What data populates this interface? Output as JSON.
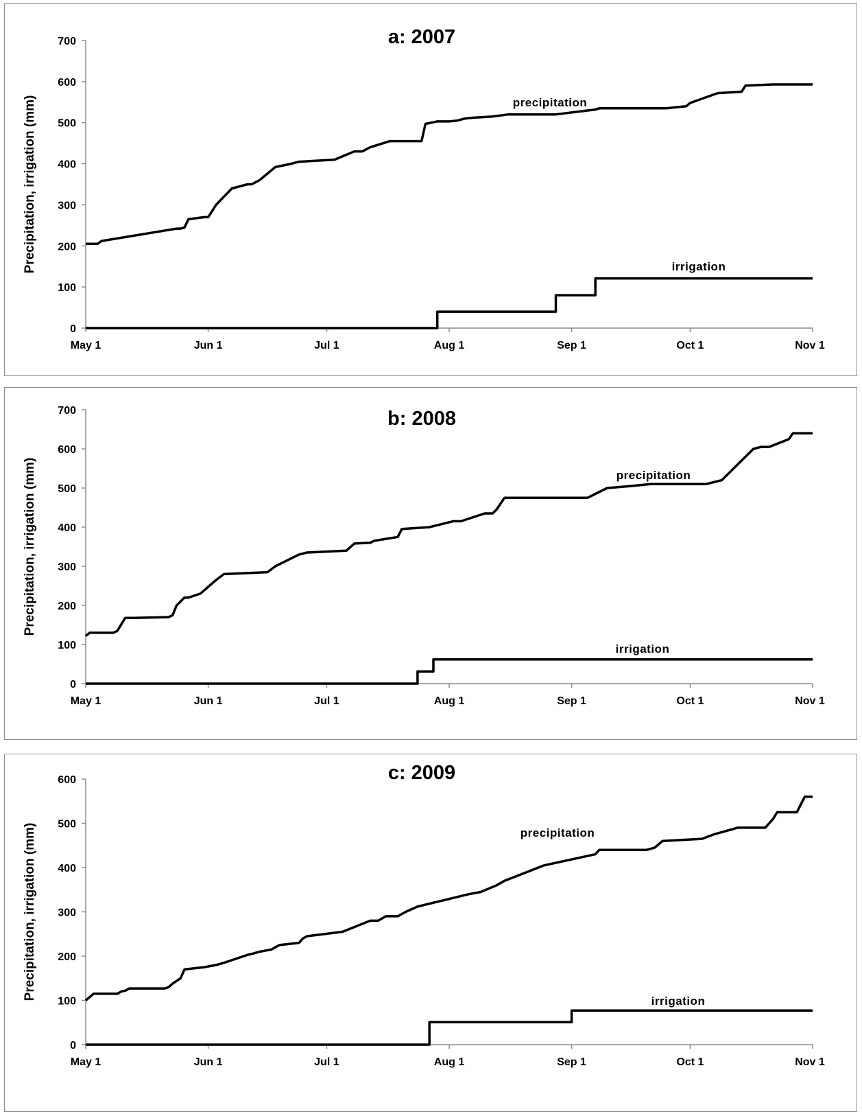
{
  "chart_data": [
    {
      "type": "line",
      "title": "a: 2007",
      "xlabel": "",
      "ylabel": "Precipitation, irrigation (mm)",
      "x_ticks": [
        "May 1",
        "Jun 1",
        "Jul 1",
        "Aug 1",
        "Sep 1",
        "Oct 1",
        "Nov 1"
      ],
      "xlim": [
        "2007-05-01",
        "2007-11-01"
      ],
      "ylim": [
        0,
        700
      ],
      "y_ticks": [
        0,
        100,
        200,
        300,
        400,
        500,
        600,
        700
      ],
      "grid": false,
      "series": [
        {
          "name": "precipitation",
          "x": [
            "2007-05-01",
            "2007-05-04",
            "2007-05-05",
            "2007-05-24",
            "2007-05-25",
            "2007-05-26",
            "2007-05-27",
            "2007-05-31",
            "2007-06-01",
            "2007-06-03",
            "2007-06-07",
            "2007-06-11",
            "2007-06-12",
            "2007-06-13",
            "2007-06-14",
            "2007-06-18",
            "2007-06-22",
            "2007-06-24",
            "2007-07-03",
            "2007-07-08",
            "2007-07-10",
            "2007-07-12",
            "2007-07-17",
            "2007-07-25",
            "2007-07-26",
            "2007-07-29",
            "2007-08-01",
            "2007-08-03",
            "2007-08-05",
            "2007-08-07",
            "2007-08-12",
            "2007-08-16",
            "2007-08-17",
            "2007-08-28",
            "2007-09-07",
            "2007-09-08",
            "2007-09-25",
            "2007-09-30",
            "2007-10-01",
            "2007-10-08",
            "2007-10-14",
            "2007-10-15",
            "2007-10-22",
            "2007-11-01"
          ],
          "y": [
            205,
            205,
            212,
            242,
            242,
            245,
            265,
            270,
            270,
            300,
            340,
            350,
            350,
            355,
            360,
            392,
            400,
            405,
            410,
            430,
            430,
            440,
            455,
            455,
            497,
            503,
            503,
            505,
            510,
            512,
            515,
            520,
            520,
            520,
            532,
            535,
            535,
            540,
            548,
            572,
            575,
            590,
            593,
            593
          ]
        },
        {
          "name": "irrigation",
          "x": [
            "2007-05-01",
            "2007-07-29",
            "2007-07-29",
            "2007-08-28",
            "2007-08-28",
            "2007-09-07",
            "2007-09-07",
            "2007-11-01"
          ],
          "y": [
            0,
            0,
            40,
            40,
            80,
            80,
            121,
            121
          ]
        }
      ],
      "annotations": [
        {
          "text": "precipitation"
        },
        {
          "text": "irrigation"
        }
      ]
    },
    {
      "type": "line",
      "title": "b: 2008",
      "xlabel": "",
      "ylabel": "Precipitation, irrigation (mm)",
      "x_ticks": [
        "May 1",
        "Jun 1",
        "Jul 1",
        "Aug 1",
        "Sep 1",
        "Oct 1",
        "Nov 1"
      ],
      "xlim": [
        "2008-05-01",
        "2008-11-01"
      ],
      "ylim": [
        0,
        700
      ],
      "y_ticks": [
        0,
        100,
        200,
        300,
        400,
        500,
        600,
        700
      ],
      "grid": false,
      "series": [
        {
          "name": "precipitation",
          "x": [
            "2008-05-01",
            "2008-05-02",
            "2008-05-08",
            "2008-05-09",
            "2008-05-11",
            "2008-05-13",
            "2008-05-22",
            "2008-05-23",
            "2008-05-24",
            "2008-05-26",
            "2008-05-27",
            "2008-05-30",
            "2008-06-03",
            "2008-06-05",
            "2008-06-16",
            "2008-06-18",
            "2008-06-19",
            "2008-06-24",
            "2008-06-26",
            "2008-07-06",
            "2008-07-08",
            "2008-07-12",
            "2008-07-13",
            "2008-07-16",
            "2008-07-19",
            "2008-07-20",
            "2008-07-27",
            "2008-08-02",
            "2008-08-04",
            "2008-08-10",
            "2008-08-12",
            "2008-08-13",
            "2008-08-15",
            "2008-09-05",
            "2008-09-10",
            "2008-09-16",
            "2008-09-21",
            "2008-10-05",
            "2008-10-09",
            "2008-10-11",
            "2008-10-17",
            "2008-10-19",
            "2008-10-21",
            "2008-10-26",
            "2008-10-27",
            "2008-11-01"
          ],
          "y": [
            122,
            130,
            130,
            135,
            168,
            168,
            170,
            175,
            200,
            220,
            220,
            230,
            265,
            280,
            285,
            300,
            305,
            330,
            335,
            340,
            358,
            360,
            365,
            370,
            375,
            395,
            400,
            415,
            415,
            435,
            435,
            445,
            475,
            475,
            500,
            505,
            510,
            510,
            520,
            540,
            600,
            605,
            605,
            625,
            640,
            640
          ]
        },
        {
          "name": "irrigation",
          "x": [
            "2008-05-01",
            "2008-07-24",
            "2008-07-24",
            "2008-07-28",
            "2008-07-28",
            "2008-11-01"
          ],
          "y": [
            0,
            0,
            31,
            31,
            62,
            62
          ]
        }
      ],
      "annotations": [
        {
          "text": "precipitation"
        },
        {
          "text": "irrigation"
        }
      ]
    },
    {
      "type": "line",
      "title": "c: 2009",
      "xlabel": "",
      "ylabel": "Precipitation, irrigation (mm)",
      "x_ticks": [
        "May 1",
        "Jun 1",
        "Jul 1",
        "Aug 1",
        "Sep 1",
        "Oct 1",
        "Nov 1"
      ],
      "xlim": [
        "2009-05-01",
        "2009-11-01"
      ],
      "ylim": [
        0,
        600
      ],
      "y_ticks": [
        0,
        100,
        200,
        300,
        400,
        500,
        600
      ],
      "grid": false,
      "series": [
        {
          "name": "precipitation",
          "x": [
            "2009-05-01",
            "2009-05-03",
            "2009-05-09",
            "2009-05-10",
            "2009-05-11",
            "2009-05-12",
            "2009-05-21",
            "2009-05-22",
            "2009-05-23",
            "2009-05-25",
            "2009-05-26",
            "2009-05-29",
            "2009-05-31",
            "2009-06-03",
            "2009-06-05",
            "2009-06-11",
            "2009-06-12",
            "2009-06-14",
            "2009-06-17",
            "2009-06-19",
            "2009-06-24",
            "2009-06-25",
            "2009-06-26",
            "2009-07-05",
            "2009-07-12",
            "2009-07-14",
            "2009-07-16",
            "2009-07-19",
            "2009-07-21",
            "2009-07-24",
            "2009-07-30",
            "2009-08-06",
            "2009-08-09",
            "2009-08-13",
            "2009-08-15",
            "2009-08-25",
            "2009-09-07",
            "2009-09-08",
            "2009-09-20",
            "2009-09-22",
            "2009-09-24",
            "2009-10-04",
            "2009-10-07",
            "2009-10-09",
            "2009-10-11",
            "2009-10-13",
            "2009-10-20",
            "2009-10-22",
            "2009-10-23",
            "2009-10-28",
            "2009-10-30",
            "2009-11-01"
          ],
          "y": [
            100,
            115,
            115,
            120,
            122,
            127,
            127,
            130,
            138,
            150,
            170,
            173,
            175,
            180,
            185,
            203,
            205,
            210,
            215,
            225,
            230,
            240,
            245,
            255,
            280,
            280,
            290,
            290,
            300,
            312,
            325,
            340,
            345,
            360,
            370,
            405,
            430,
            440,
            440,
            445,
            460,
            465,
            475,
            480,
            485,
            490,
            490,
            510,
            525,
            525,
            560,
            560
          ]
        },
        {
          "name": "irrigation",
          "x": [
            "2009-05-01",
            "2009-07-27",
            "2009-07-27",
            "2009-09-01",
            "2009-09-01",
            "2009-11-01"
          ],
          "y": [
            0,
            0,
            51,
            51,
            77,
            77
          ]
        }
      ],
      "annotations": [
        {
          "text": "precipitation"
        },
        {
          "text": "irrigation"
        }
      ]
    }
  ]
}
